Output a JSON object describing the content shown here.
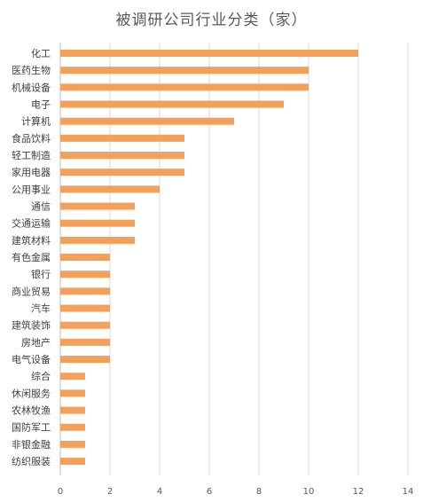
{
  "chart_data": {
    "type": "bar",
    "orientation": "horizontal",
    "title": "被调研公司行业分类（家）",
    "xlabel": "",
    "ylabel": "",
    "xlim": [
      0,
      14
    ],
    "xticks": [
      0,
      2,
      4,
      6,
      8,
      10,
      12,
      14
    ],
    "grid": "vertical gridlines",
    "legend": "none",
    "bar_color": "#F4A05A",
    "categories": [
      "化工",
      "医药生物",
      "机械设备",
      "电子",
      "计算机",
      "食品饮料",
      "轻工制造",
      "家用电器",
      "公用事业",
      "通信",
      "交通运输",
      "建筑材料",
      "有色金属",
      "银行",
      "商业贸易",
      "汽车",
      "建筑装饰",
      "房地产",
      "电气设备",
      "综合",
      "休闲服务",
      "农林牧渔",
      "国防军工",
      "非银金融",
      "纺织服装"
    ],
    "values": [
      12,
      10,
      10,
      9,
      7,
      5,
      5,
      5,
      4,
      3,
      3,
      3,
      2,
      2,
      2,
      2,
      2,
      2,
      2,
      1,
      1,
      1,
      1,
      1,
      1
    ]
  }
}
